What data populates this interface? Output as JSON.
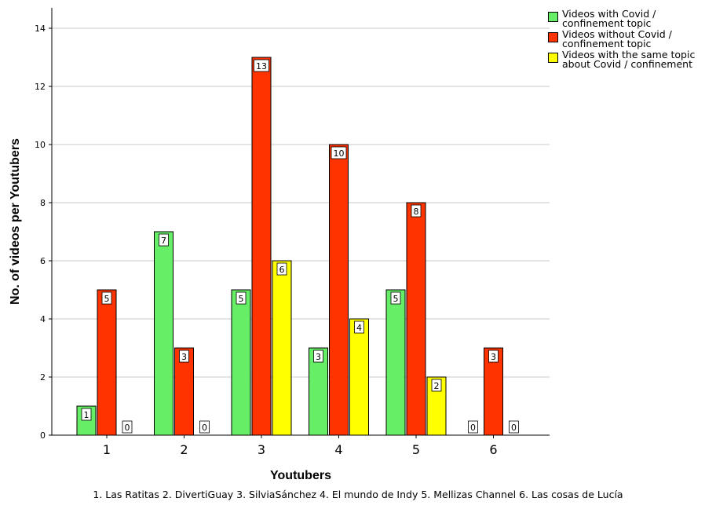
{
  "chart_data": {
    "type": "bar",
    "categories": [
      "1",
      "2",
      "3",
      "4",
      "5",
      "6"
    ],
    "series": [
      {
        "name": "Videos with Covid /\nconfinement topic",
        "color": "#66ee66",
        "values": [
          1,
          7,
          5,
          3,
          5,
          0
        ]
      },
      {
        "name": "Videos without Covid /\nconfinement topic",
        "color": "#ff3300",
        "values": [
          5,
          3,
          13,
          10,
          8,
          3
        ]
      },
      {
        "name": "Videos with the same topic\nabout Covid / confinement",
        "color": "#ffff00",
        "values": [
          0,
          0,
          6,
          4,
          2,
          0
        ]
      }
    ],
    "xlabel": "Youtubers",
    "ylabel": "No. of videos per Youtubers",
    "ylim": [
      0,
      14
    ],
    "yticks": [
      0,
      2,
      4,
      6,
      8,
      10,
      12,
      14
    ],
    "grid": true,
    "legend_position": "top-right",
    "data_labels": true
  },
  "caption": "1. Las Ratitas  2. DivertiGuay  3. SilviaSánchez  4. El mundo de Indy  5. Mellizas Channel  6. Las cosas de Lucía"
}
